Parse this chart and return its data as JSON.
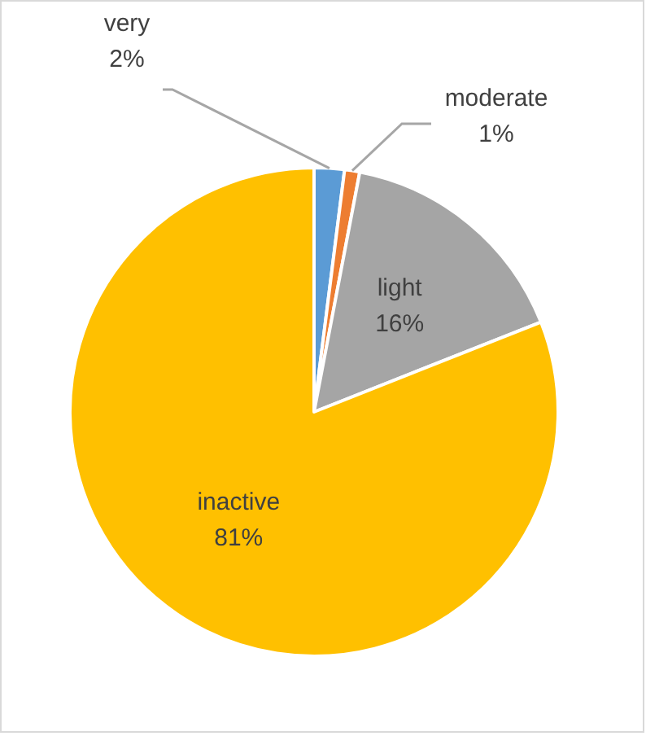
{
  "chart_data": {
    "type": "pie",
    "categories": [
      "very",
      "moderate",
      "light",
      "inactive"
    ],
    "values": [
      2,
      1,
      16,
      81
    ],
    "colors": [
      "#5b9bd5",
      "#ed7d31",
      "#a5a5a5",
      "#ffc000"
    ],
    "value_labels": [
      "2%",
      "1%",
      "16%",
      "81%"
    ]
  }
}
